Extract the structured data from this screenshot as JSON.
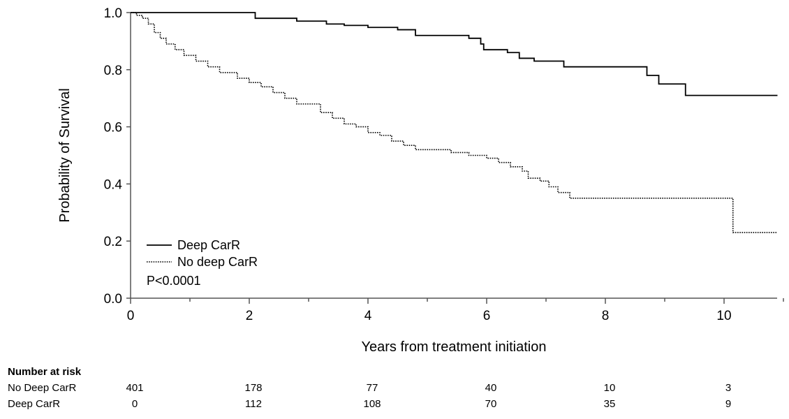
{
  "chart_data": {
    "type": "line",
    "title": "",
    "xlabel": "Years from treatment initiation",
    "ylabel": "Probability of Survival",
    "xlim": [
      0,
      11
    ],
    "ylim": [
      0,
      1
    ],
    "x_ticks": [
      0,
      2,
      4,
      6,
      8,
      10
    ],
    "y_ticks": [
      0.0,
      0.2,
      0.4,
      0.6,
      0.8,
      1.0
    ],
    "y_tick_labels": [
      "0.0",
      "0.2",
      "0.4",
      "0.6",
      "0.8",
      "1.0"
    ],
    "grid": false,
    "legend_position": "bottom-left",
    "annotation": "P<0.0001",
    "series": [
      {
        "name": "Deep CarR",
        "line_style": "solid",
        "color": "#000000",
        "step": true,
        "points": [
          [
            0,
            1.0
          ],
          [
            2.1,
            0.98
          ],
          [
            2.8,
            0.97
          ],
          [
            3.3,
            0.96
          ],
          [
            3.6,
            0.955
          ],
          [
            4.0,
            0.948
          ],
          [
            4.5,
            0.94
          ],
          [
            4.8,
            0.92
          ],
          [
            5.7,
            0.91
          ],
          [
            5.9,
            0.89
          ],
          [
            5.95,
            0.87
          ],
          [
            6.35,
            0.86
          ],
          [
            6.55,
            0.84
          ],
          [
            6.8,
            0.83
          ],
          [
            7.3,
            0.81
          ],
          [
            8.7,
            0.78
          ],
          [
            8.9,
            0.75
          ],
          [
            9.35,
            0.71
          ],
          [
            10.9,
            0.71
          ]
        ]
      },
      {
        "name": "No deep CarR",
        "line_style": "dotted",
        "color": "#000000",
        "step": true,
        "points": [
          [
            0,
            1.0
          ],
          [
            0.1,
            0.99
          ],
          [
            0.2,
            0.98
          ],
          [
            0.3,
            0.96
          ],
          [
            0.4,
            0.93
          ],
          [
            0.5,
            0.91
          ],
          [
            0.6,
            0.89
          ],
          [
            0.75,
            0.87
          ],
          [
            0.9,
            0.85
          ],
          [
            1.1,
            0.83
          ],
          [
            1.3,
            0.81
          ],
          [
            1.5,
            0.79
          ],
          [
            1.8,
            0.77
          ],
          [
            2.0,
            0.755
          ],
          [
            2.2,
            0.74
          ],
          [
            2.4,
            0.72
          ],
          [
            2.6,
            0.7
          ],
          [
            2.8,
            0.68
          ],
          [
            3.2,
            0.65
          ],
          [
            3.4,
            0.63
          ],
          [
            3.6,
            0.61
          ],
          [
            3.8,
            0.6
          ],
          [
            4.0,
            0.58
          ],
          [
            4.2,
            0.57
          ],
          [
            4.4,
            0.55
          ],
          [
            4.6,
            0.535
          ],
          [
            4.8,
            0.52
          ],
          [
            5.4,
            0.51
          ],
          [
            5.7,
            0.5
          ],
          [
            6.0,
            0.49
          ],
          [
            6.2,
            0.475
          ],
          [
            6.4,
            0.46
          ],
          [
            6.6,
            0.445
          ],
          [
            6.7,
            0.42
          ],
          [
            6.9,
            0.41
          ],
          [
            7.05,
            0.39
          ],
          [
            7.2,
            0.37
          ],
          [
            7.4,
            0.35
          ],
          [
            10.15,
            0.35
          ],
          [
            10.15,
            0.23
          ],
          [
            10.9,
            0.23
          ]
        ]
      }
    ]
  },
  "risk_table": {
    "heading": "Number at risk",
    "times": [
      0,
      2,
      4,
      6,
      8,
      10
    ],
    "rows": [
      {
        "label": "No Deep CarR",
        "values": [
          "401",
          "178",
          "77",
          "40",
          "10",
          "3"
        ]
      },
      {
        "label": "Deep CarR",
        "values": [
          "0",
          "112",
          "108",
          "70",
          "35",
          "9"
        ]
      }
    ]
  }
}
